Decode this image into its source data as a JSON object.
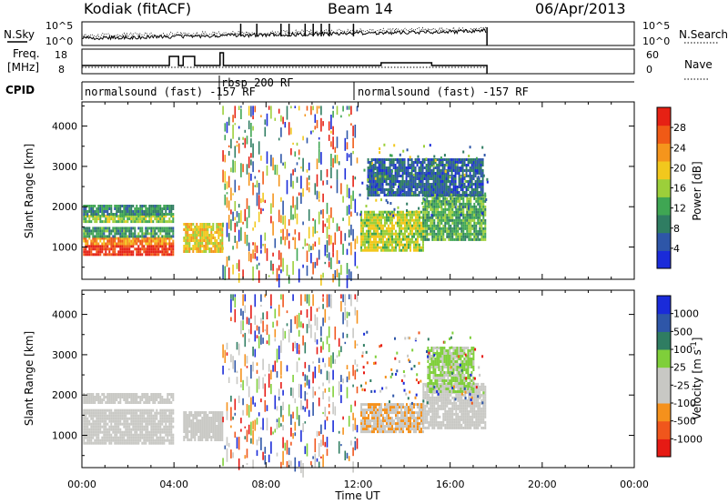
{
  "header": {
    "station": "Kodiak (fitACF)",
    "beam": "Beam 14",
    "date": "06/Apr/2013"
  },
  "noise_panel": {
    "left_label": "N.Sky",
    "right_label": "N.Search",
    "left_ticks": [
      "10^5",
      "10^0"
    ],
    "right_ticks": [
      "10^5",
      "10^0"
    ]
  },
  "freq_panel": {
    "left_label_line1": "Freq.",
    "left_label_line2": "[MHz]",
    "right_label": "Nave",
    "left_ticks": [
      "18",
      "8"
    ],
    "right_ticks": [
      "60",
      "0"
    ]
  },
  "cpid": {
    "label": "CPID",
    "segments": [
      {
        "text": "normalsound (fast) -157 RF",
        "start_hour": 0,
        "end_hour": 6.1
      },
      {
        "text": "rbsp 200 RF",
        "start_hour": 6.1,
        "end_hour": 12.0
      },
      {
        "text": "normalsound (fast) -157 RF",
        "start_hour": 12.0,
        "end_hour": 24
      }
    ]
  },
  "colors": {
    "power_scale": [
      "#1a2bd9",
      "#2e56a8",
      "#2f7d62",
      "#3fa653",
      "#9ccf3a",
      "#f2c81d",
      "#f5951c",
      "#f05a16",
      "#e62114"
    ],
    "velocity_scale": [
      "#e61a14",
      "#f0561c",
      "#f5911c",
      "#c8c8c4",
      "#c8c8c4",
      "#7fcf3a",
      "#2f7d62",
      "#2e56a8",
      "#1a2bd9"
    ]
  },
  "chart_data": [
    {
      "type": "heatmap",
      "title": "",
      "xlabel": "Time UT",
      "ylabel": "Slant Range [km]",
      "xlim": [
        "00:00",
        "00:00"
      ],
      "x_ticks": [
        "00:00",
        "04:00",
        "08:00",
        "12:00",
        "16:00",
        "20:00",
        "00:00"
      ],
      "ylim": [
        200,
        4600
      ],
      "y_ticks": [
        1000,
        2000,
        3000,
        4000
      ],
      "colorbar_label": "Power [dB]",
      "colorbar_ticks": [
        "4",
        "8",
        "12",
        "16",
        "20",
        "24",
        "28"
      ],
      "colorbar_range": [
        0,
        30
      ],
      "regions": [
        {
          "t0": 0.05,
          "t1": 4.0,
          "r0": 800,
          "r1": 1050,
          "value": 28
        },
        {
          "t0": 0.05,
          "t1": 4.0,
          "r0": 1050,
          "r1": 1250,
          "value": 22
        },
        {
          "t0": 0.05,
          "t1": 4.0,
          "r0": 1250,
          "r1": 1500,
          "value": 10
        },
        {
          "t0": 0.05,
          "t1": 4.0,
          "r0": 1600,
          "r1": 1800,
          "value": 14
        },
        {
          "t0": 0.05,
          "t1": 4.0,
          "r0": 1800,
          "r1": 2050,
          "value": 9
        },
        {
          "t0": 4.4,
          "t1": 6.1,
          "r0": 900,
          "r1": 1600,
          "value": 18
        },
        {
          "t0": 12.1,
          "t1": 14.8,
          "r0": 900,
          "r1": 1900,
          "value": 16
        },
        {
          "t0": 14.8,
          "t1": 17.5,
          "r0": 1200,
          "r1": 2300,
          "value": 12
        },
        {
          "t0": 12.4,
          "t1": 17.4,
          "r0": 2300,
          "r1": 3200,
          "value": 6
        }
      ],
      "scatter_band": {
        "t0": 6.1,
        "t1": 12.0,
        "r0": 300,
        "r1": 4500,
        "note": "sparse mixed-power echoes"
      }
    },
    {
      "type": "heatmap",
      "title": "",
      "xlabel": "Time UT",
      "ylabel": "Slant Range [km]",
      "xlim": [
        "00:00",
        "00:00"
      ],
      "x_ticks": [
        "00:00",
        "04:00",
        "08:00",
        "12:00",
        "16:00",
        "20:00",
        "00:00"
      ],
      "ylim": [
        200,
        4600
      ],
      "y_ticks": [
        1000,
        2000,
        3000,
        4000
      ],
      "colorbar_label": "Velocity [m s^-1]",
      "colorbar_ticks": [
        "-1000",
        "-500",
        "-100",
        "-25",
        "25",
        "100",
        "500",
        "1000"
      ],
      "colorbar_range": [
        -1000,
        1000
      ],
      "regions": [
        {
          "t0": 0.05,
          "t1": 4.0,
          "r0": 800,
          "r1": 1650,
          "value": 0
        },
        {
          "t0": 0.05,
          "t1": 4.0,
          "r0": 1800,
          "r1": 2050,
          "value": 0
        },
        {
          "t0": 4.4,
          "t1": 6.1,
          "r0": 900,
          "r1": 1600,
          "value": 0
        },
        {
          "t0": 12.1,
          "t1": 14.8,
          "r0": 1100,
          "r1": 1800,
          "value": -300
        },
        {
          "t0": 14.8,
          "t1": 17.5,
          "r0": 1200,
          "r1": 2300,
          "value": 0
        },
        {
          "t0": 15.0,
          "t1": 17.0,
          "r0": 2100,
          "r1": 3200,
          "value": 150
        }
      ],
      "scatter_band": {
        "t0": 6.1,
        "t1": 12.0,
        "r0": 300,
        "r1": 4500,
        "note": "sparse mixed-velocity echoes"
      }
    }
  ]
}
